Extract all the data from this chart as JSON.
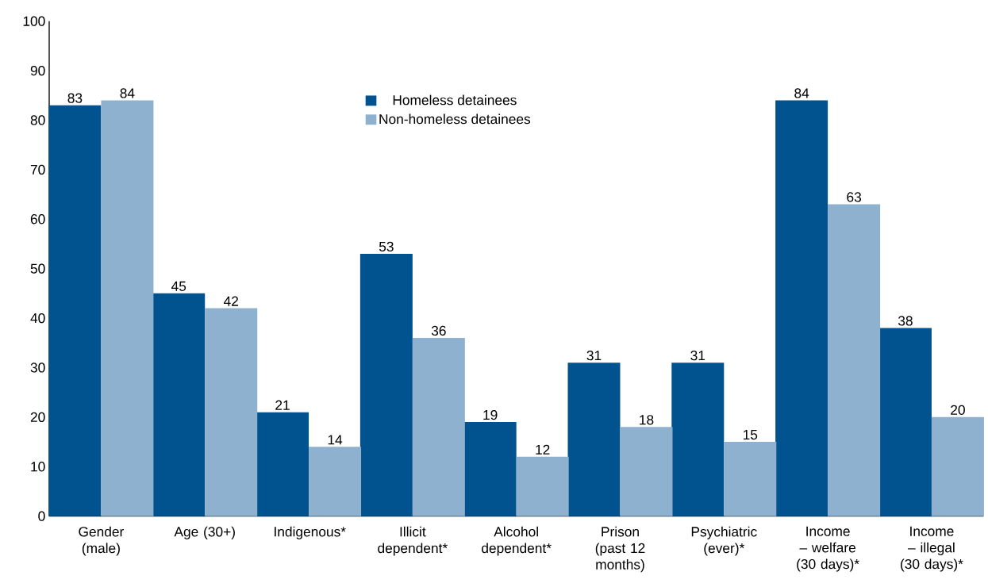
{
  "chart_data": {
    "type": "bar",
    "categories": [
      "Gender (male)",
      "Age (30+)",
      "Indigenous*",
      "Illicit dependent*",
      "Alcohol dependent*",
      "Prison (past 12 months)",
      "Psychiatric (ever)*",
      "Income – welfare (30 days)*",
      "Income – illegal (30 days)*"
    ],
    "series": [
      {
        "name": "Homeless detainees",
        "color": "#00538f",
        "values": [
          83,
          45,
          21,
          53,
          19,
          31,
          31,
          84,
          38
        ]
      },
      {
        "name": "Non-homeless detainees",
        "color": "#8fb1d0",
        "values": [
          84,
          42,
          14,
          36,
          12,
          18,
          15,
          63,
          20
        ]
      }
    ],
    "ylim": [
      0,
      100
    ],
    "yticks": [
      0,
      10,
      20,
      30,
      40,
      50,
      60,
      70,
      80,
      90,
      100
    ],
    "data_labels": true,
    "grid": false,
    "legend": "top"
  }
}
